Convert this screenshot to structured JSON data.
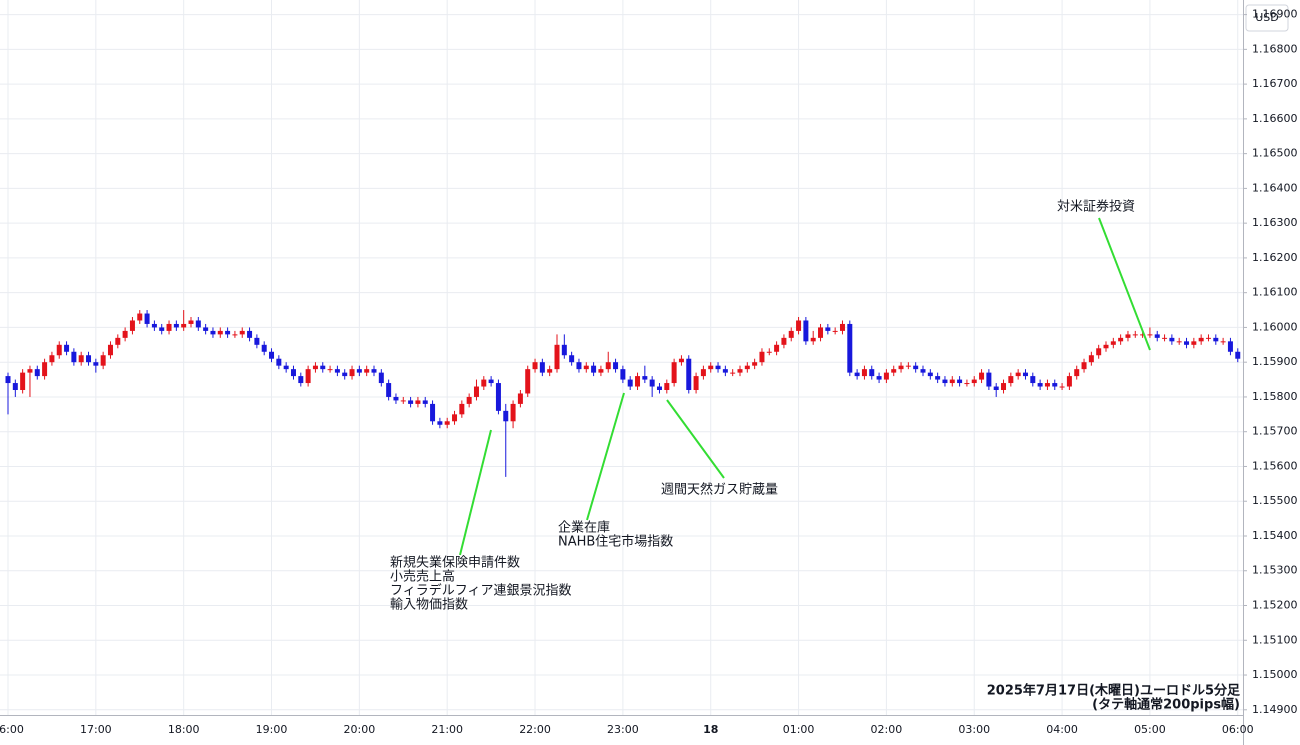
{
  "chart_data": {
    "type": "candlestick",
    "currency": "USD",
    "categories": [
      "16:00",
      null,
      null,
      null,
      null,
      null,
      null,
      null,
      null,
      null,
      null,
      null,
      "17:00",
      null,
      null,
      null,
      null,
      null,
      null,
      null,
      null,
      null,
      null,
      null,
      "18:00",
      null,
      null,
      null,
      null,
      null,
      null,
      null,
      null,
      null,
      null,
      null,
      "19:00",
      null,
      null,
      null,
      null,
      null,
      null,
      null,
      null,
      null,
      null,
      null,
      "20:00",
      null,
      null,
      null,
      null,
      null,
      null,
      null,
      null,
      null,
      null,
      null,
      "21:00",
      null,
      null,
      null,
      null,
      null,
      null,
      null,
      null,
      null,
      null,
      null,
      "22:00",
      null,
      null,
      null,
      null,
      null,
      null,
      null,
      null,
      null,
      null,
      null,
      "23:00",
      null,
      null,
      null,
      null,
      null,
      null,
      null,
      null,
      null,
      null,
      null,
      "18",
      null,
      null,
      null,
      null,
      null,
      null,
      null,
      null,
      null,
      null,
      null,
      "01:00",
      null,
      null,
      null,
      null,
      null,
      null,
      null,
      null,
      null,
      null,
      null,
      "02:00",
      null,
      null,
      null,
      null,
      null,
      null,
      null,
      null,
      null,
      null,
      null,
      "03:00",
      null,
      null,
      null,
      null,
      null,
      null,
      null,
      null,
      null,
      null,
      null,
      "04:00",
      null,
      null,
      null,
      null,
      null,
      null,
      null,
      null,
      null,
      null,
      null,
      "05:00",
      null,
      null,
      null,
      null,
      null,
      null,
      null,
      null,
      null,
      null,
      null,
      "06:00"
    ],
    "open": [
      1.1586,
      1.1584,
      1.1582,
      1.1587,
      1.1588,
      1.1586,
      1.159,
      1.1592,
      1.1595,
      1.1593,
      1.159,
      1.1592,
      1.159,
      1.1589,
      1.1592,
      1.1595,
      1.1597,
      1.1599,
      1.1602,
      1.1604,
      1.1601,
      1.16,
      1.1599,
      1.1601,
      1.16,
      1.1601,
      1.1602,
      1.16,
      1.1599,
      1.1598,
      1.1599,
      1.1598,
      1.1598,
      1.1599,
      1.1597,
      1.1595,
      1.1593,
      1.1591,
      1.1589,
      1.1588,
      1.1586,
      1.1584,
      1.1588,
      1.1589,
      1.1588,
      1.1588,
      1.1587,
      1.1586,
      1.1588,
      1.1587,
      1.1588,
      1.1587,
      1.1584,
      1.158,
      1.1579,
      1.1579,
      1.1578,
      1.1579,
      1.1578,
      1.1573,
      1.1572,
      1.1573,
      1.1575,
      1.1578,
      1.158,
      1.1583,
      1.1585,
      1.1584,
      1.1576,
      1.1573,
      1.1578,
      1.1581,
      1.1588,
      1.159,
      1.1587,
      1.1588,
      1.1595,
      1.1592,
      1.159,
      1.1588,
      1.1589,
      1.1587,
      1.1588,
      1.159,
      1.1588,
      1.1585,
      1.1583,
      1.1586,
      1.1585,
      1.1583,
      1.1582,
      1.1584,
      1.159,
      1.1591,
      1.1582,
      1.1586,
      1.1588,
      1.1589,
      1.1588,
      1.1587,
      1.1587,
      1.1588,
      1.1589,
      1.159,
      1.1593,
      1.1593,
      1.1595,
      1.1597,
      1.1599,
      1.1602,
      1.1596,
      1.1597,
      1.16,
      1.1599,
      1.1599,
      1.1601,
      1.1587,
      1.1586,
      1.1588,
      1.1586,
      1.1585,
      1.1587,
      1.1588,
      1.1589,
      1.1589,
      1.1588,
      1.1587,
      1.1586,
      1.1585,
      1.1584,
      1.1585,
      1.1584,
      1.1584,
      1.1585,
      1.1587,
      1.1583,
      1.1582,
      1.1584,
      1.1586,
      1.1587,
      1.1586,
      1.1584,
      1.1583,
      1.1584,
      1.1583,
      1.1583,
      1.1586,
      1.1588,
      1.159,
      1.1592,
      1.1594,
      1.1595,
      1.1596,
      1.1597,
      1.1598,
      1.1598,
      1.1598,
      1.1598,
      1.1597,
      1.1597,
      1.1596,
      1.1596,
      1.1595,
      1.1596,
      1.1597,
      1.1597,
      1.1596,
      1.1596,
      1.1593
    ],
    "high": [
      1.1587,
      1.1585,
      1.1588,
      1.1589,
      1.1589,
      1.1591,
      1.1593,
      1.1596,
      1.1596,
      1.1594,
      1.1593,
      1.1593,
      1.1591,
      1.1593,
      1.1596,
      1.1598,
      1.16,
      1.1603,
      1.1605,
      1.1605,
      1.1602,
      1.1601,
      1.1602,
      1.1602,
      1.1605,
      1.1603,
      1.1603,
      1.1601,
      1.16,
      1.16,
      1.16,
      1.1599,
      1.16,
      1.16,
      1.1598,
      1.1596,
      1.1594,
      1.1592,
      1.159,
      1.1589,
      1.1587,
      1.1589,
      1.159,
      1.159,
      1.1589,
      1.1589,
      1.1588,
      1.1589,
      1.1589,
      1.1589,
      1.1589,
      1.1588,
      1.1585,
      1.1581,
      1.158,
      1.158,
      1.158,
      1.158,
      1.1579,
      1.1574,
      1.1574,
      1.1576,
      1.1579,
      1.1581,
      1.1585,
      1.1586,
      1.1586,
      1.1585,
      1.1578,
      1.1579,
      1.1582,
      1.1589,
      1.1591,
      1.1591,
      1.1589,
      1.1598,
      1.1598,
      1.1593,
      1.1591,
      1.159,
      1.159,
      1.1589,
      1.1593,
      1.1591,
      1.1589,
      1.1586,
      1.1587,
      1.1589,
      1.1586,
      1.1584,
      1.1585,
      1.1591,
      1.1592,
      1.1592,
      1.1587,
      1.1589,
      1.159,
      1.159,
      1.1589,
      1.1588,
      1.1589,
      1.159,
      1.1591,
      1.1594,
      1.1594,
      1.1596,
      1.1598,
      1.16,
      1.1603,
      1.1603,
      1.1599,
      1.1601,
      1.1601,
      1.16,
      1.1602,
      1.1602,
      1.1588,
      1.1589,
      1.1589,
      1.1587,
      1.1588,
      1.1589,
      1.159,
      1.159,
      1.159,
      1.1589,
      1.1588,
      1.1587,
      1.1586,
      1.1586,
      1.1586,
      1.1585,
      1.1586,
      1.1588,
      1.1588,
      1.1584,
      1.1585,
      1.1587,
      1.1588,
      1.1588,
      1.1587,
      1.1585,
      1.1585,
      1.1585,
      1.1584,
      1.1587,
      1.1589,
      1.1591,
      1.1593,
      1.1595,
      1.1596,
      1.1597,
      1.1598,
      1.1599,
      1.1599,
      1.1599,
      1.16,
      1.1599,
      1.1598,
      1.1598,
      1.1597,
      1.1597,
      1.1597,
      1.1598,
      1.1598,
      1.1598,
      1.1597,
      1.1597,
      1.1594
    ],
    "low": [
      1.1575,
      1.158,
      1.1581,
      1.158,
      1.1585,
      1.1585,
      1.1589,
      1.1591,
      1.1592,
      1.1589,
      1.1589,
      1.1589,
      1.1587,
      1.1588,
      1.1591,
      1.1594,
      1.1596,
      1.1598,
      1.1601,
      1.16,
      1.1599,
      1.1598,
      1.1598,
      1.1599,
      1.1599,
      1.16,
      1.1599,
      1.1598,
      1.1597,
      1.1597,
      1.1597,
      1.1597,
      1.1597,
      1.1596,
      1.1594,
      1.1592,
      1.159,
      1.1588,
      1.1587,
      1.1585,
      1.1583,
      1.1583,
      1.1587,
      1.1587,
      1.1587,
      1.1586,
      1.1585,
      1.1585,
      1.1586,
      1.1586,
      1.1586,
      1.1583,
      1.1579,
      1.1578,
      1.1578,
      1.1577,
      1.1577,
      1.1577,
      1.1572,
      1.1571,
      1.1571,
      1.1572,
      1.1574,
      1.1577,
      1.1579,
      1.1582,
      1.1583,
      1.1575,
      1.1557,
      1.1571,
      1.1577,
      1.158,
      1.1587,
      1.1586,
      1.1586,
      1.1587,
      1.1591,
      1.1589,
      1.1587,
      1.1587,
      1.1586,
      1.1586,
      1.1587,
      1.1587,
      1.1584,
      1.1582,
      1.1582,
      1.1584,
      1.158,
      1.1581,
      1.1581,
      1.1583,
      1.1589,
      1.1581,
      1.1581,
      1.1585,
      1.1587,
      1.1587,
      1.1586,
      1.1586,
      1.1586,
      1.1587,
      1.1588,
      1.1589,
      1.1592,
      1.1592,
      1.1594,
      1.1596,
      1.1598,
      1.1595,
      1.1595,
      1.1596,
      1.1598,
      1.1598,
      1.1598,
      1.1586,
      1.1585,
      1.1585,
      1.1585,
      1.1584,
      1.1584,
      1.1586,
      1.1587,
      1.1588,
      1.1587,
      1.1586,
      1.1585,
      1.1584,
      1.1583,
      1.1583,
      1.1583,
      1.1583,
      1.1583,
      1.1584,
      1.1582,
      1.158,
      1.1581,
      1.1583,
      1.1585,
      1.1585,
      1.1583,
      1.1582,
      1.1582,
      1.1582,
      1.1582,
      1.1582,
      1.1585,
      1.1587,
      1.1589,
      1.1591,
      1.1593,
      1.1594,
      1.1595,
      1.1596,
      1.1597,
      1.1597,
      1.1597,
      1.1596,
      1.1596,
      1.1595,
      1.1595,
      1.1594,
      1.1594,
      1.1595,
      1.1596,
      1.1595,
      1.1595,
      1.1592,
      1.159
    ],
    "close": [
      1.1584,
      1.1582,
      1.1587,
      1.1588,
      1.1586,
      1.159,
      1.1592,
      1.1595,
      1.1593,
      1.159,
      1.1592,
      1.159,
      1.1589,
      1.1592,
      1.1595,
      1.1597,
      1.1599,
      1.1602,
      1.1604,
      1.1601,
      1.16,
      1.1599,
      1.1601,
      1.16,
      1.1601,
      1.1602,
      1.16,
      1.1599,
      1.1598,
      1.1599,
      1.1598,
      1.1598,
      1.1599,
      1.1597,
      1.1595,
      1.1593,
      1.1591,
      1.1589,
      1.1588,
      1.1586,
      1.1584,
      1.1588,
      1.1589,
      1.1588,
      1.1588,
      1.1587,
      1.1586,
      1.1588,
      1.1587,
      1.1588,
      1.1587,
      1.1584,
      1.158,
      1.1579,
      1.1579,
      1.1578,
      1.1579,
      1.1578,
      1.1573,
      1.1572,
      1.1573,
      1.1575,
      1.1578,
      1.158,
      1.1583,
      1.1585,
      1.1584,
      1.1576,
      1.1573,
      1.1578,
      1.1581,
      1.1588,
      1.159,
      1.1587,
      1.1588,
      1.1595,
      1.1592,
      1.159,
      1.1588,
      1.1589,
      1.1587,
      1.1588,
      1.159,
      1.1588,
      1.1585,
      1.1583,
      1.1586,
      1.1585,
      1.1583,
      1.1582,
      1.1584,
      1.159,
      1.1591,
      1.1582,
      1.1586,
      1.1588,
      1.1589,
      1.1588,
      1.1587,
      1.1587,
      1.1588,
      1.1589,
      1.159,
      1.1593,
      1.1593,
      1.1595,
      1.1597,
      1.1599,
      1.1602,
      1.1596,
      1.1597,
      1.16,
      1.1599,
      1.1599,
      1.1601,
      1.1587,
      1.1586,
      1.1588,
      1.1586,
      1.1585,
      1.1587,
      1.1588,
      1.1589,
      1.1589,
      1.1588,
      1.1587,
      1.1586,
      1.1585,
      1.1584,
      1.1585,
      1.1584,
      1.1584,
      1.1585,
      1.1587,
      1.1583,
      1.1582,
      1.1584,
      1.1586,
      1.1587,
      1.1586,
      1.1584,
      1.1583,
      1.1584,
      1.1583,
      1.1583,
      1.1586,
      1.1588,
      1.159,
      1.1592,
      1.1594,
      1.1595,
      1.1596,
      1.1597,
      1.1598,
      1.1598,
      1.1598,
      1.1598,
      1.1597,
      1.1597,
      1.1596,
      1.1596,
      1.1595,
      1.1596,
      1.1597,
      1.1597,
      1.1596,
      1.1596,
      1.1593,
      1.1591
    ],
    "up_color": "#e3131b",
    "down_color": "#1818dc",
    "ylim": [
      1.14885,
      1.16942
    ],
    "yticks": [
      {
        "value": 1.149,
        "label": "1.14900"
      },
      {
        "value": 1.15,
        "label": "1.15000"
      },
      {
        "value": 1.151,
        "label": "1.15100"
      },
      {
        "value": 1.152,
        "label": "1.15200"
      },
      {
        "value": 1.153,
        "label": "1.15300"
      },
      {
        "value": 1.154,
        "label": "1.15400"
      },
      {
        "value": 1.155,
        "label": "1.15500"
      },
      {
        "value": 1.156,
        "label": "1.15600"
      },
      {
        "value": 1.157,
        "label": "1.15700"
      },
      {
        "value": 1.158,
        "label": "1.15800"
      },
      {
        "value": 1.159,
        "label": "1.15900"
      },
      {
        "value": 1.16,
        "label": "1.16000"
      },
      {
        "value": 1.161,
        "label": "1.16100"
      },
      {
        "value": 1.162,
        "label": "1.16200"
      },
      {
        "value": 1.163,
        "label": "1.16300"
      },
      {
        "value": 1.164,
        "label": "1.16400"
      },
      {
        "value": 1.165,
        "label": "1.16500"
      },
      {
        "value": 1.166,
        "label": "1.16600"
      },
      {
        "value": 1.167,
        "label": "1.16700"
      },
      {
        "value": 1.168,
        "label": "1.16800"
      },
      {
        "value": 1.169,
        "label": "1.16900"
      }
    ],
    "grid": true,
    "annotation_color": "#33dd33",
    "annotations": [
      {
        "lines": [
          "新規失業保険申請件数",
          "小売売上高",
          "フィラデルフィア連銀景況指数",
          "輸入物価指数"
        ]
      },
      {
        "lines": [
          "企業在庫",
          "NAHB住宅市場指数"
        ]
      },
      {
        "lines": [
          "週間天然ガス貯蔵量"
        ]
      },
      {
        "lines": [
          "対米証券投資"
        ]
      }
    ],
    "note": [
      "2025年7月17日(木曜日)ユーロドル5分足",
      "(タテ軸通常200pips幅)"
    ]
  }
}
